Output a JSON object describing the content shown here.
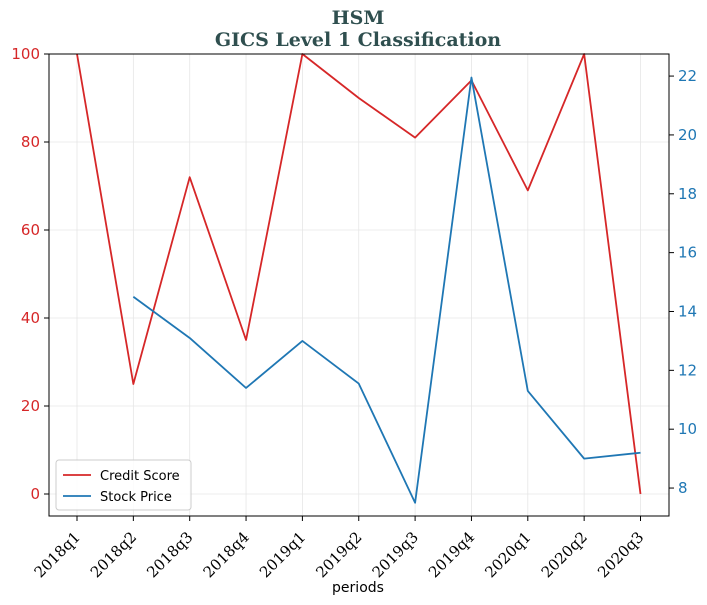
{
  "chart_data": {
    "type": "line",
    "title_line1": "HSM",
    "title_line2": "GICS Level 1 Classification",
    "xlabel": "periods",
    "categories": [
      "2018q1",
      "2018q2",
      "2018q3",
      "2018q4",
      "2019q1",
      "2019q2",
      "2019q3",
      "2019q4",
      "2020q1",
      "2020q2",
      "2020q3"
    ],
    "series": [
      {
        "name": "Credit Score",
        "axis": "left",
        "color": "#d62728",
        "values": [
          100,
          25,
          72,
          35,
          100,
          90,
          81,
          94,
          69,
          100,
          0
        ]
      },
      {
        "name": "Stock Price",
        "axis": "right",
        "color": "#1f77b4",
        "values": [
          null,
          14.5,
          13.1,
          11.4,
          13.0,
          11.55,
          7.5,
          21.95,
          11.3,
          9.0,
          9.2
        ]
      }
    ],
    "y_left": {
      "lim": [
        -5,
        100
      ],
      "ticks": [
        0,
        20,
        40,
        60,
        80,
        100
      ],
      "color": "#d62728"
    },
    "y_right": {
      "lim": [
        7.05,
        22.75
      ],
      "ticks": [
        8,
        10,
        12,
        14,
        16,
        18,
        20,
        22
      ],
      "color": "#1f77b4"
    },
    "grid": true,
    "legend": {
      "placement": "lower-left",
      "entries": [
        "Credit Score",
        "Stock Price"
      ]
    }
  }
}
